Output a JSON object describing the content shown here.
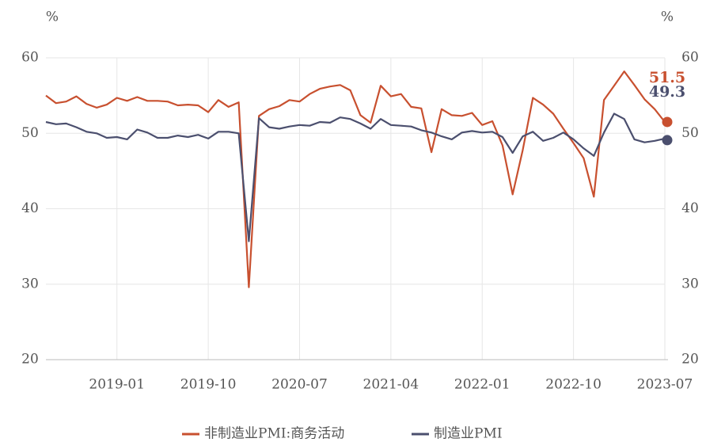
{
  "chart_data": {
    "type": "line",
    "y_unit": "%",
    "y2_unit": "%",
    "x": [
      "2018-06",
      "2018-07",
      "2018-08",
      "2018-09",
      "2018-10",
      "2018-11",
      "2018-12",
      "2019-01",
      "2019-02",
      "2019-03",
      "2019-04",
      "2019-05",
      "2019-06",
      "2019-07",
      "2019-08",
      "2019-09",
      "2019-10",
      "2019-11",
      "2019-12",
      "2020-01",
      "2020-02",
      "2020-03",
      "2020-04",
      "2020-05",
      "2020-06",
      "2020-07",
      "2020-08",
      "2020-09",
      "2020-10",
      "2020-11",
      "2020-12",
      "2021-01",
      "2021-02",
      "2021-03",
      "2021-04",
      "2021-05",
      "2021-06",
      "2021-07",
      "2021-08",
      "2021-09",
      "2021-10",
      "2021-11",
      "2021-12",
      "2022-01",
      "2022-02",
      "2022-03",
      "2022-04",
      "2022-05",
      "2022-06",
      "2022-07",
      "2022-08",
      "2022-09",
      "2022-10",
      "2022-11",
      "2022-12",
      "2023-01",
      "2023-02",
      "2023-03",
      "2023-04",
      "2023-05",
      "2023-06",
      "2023-07"
    ],
    "xlim": [
      "2018-06",
      "2023-07"
    ],
    "xticks": [
      "2019-01",
      "2019-10",
      "2020-07",
      "2021-04",
      "2022-01",
      "2022-10",
      "2023-07"
    ],
    "ylim": [
      20,
      60
    ],
    "yticks": [
      20,
      30,
      40,
      50,
      60
    ],
    "y2lim": [
      20,
      60
    ],
    "y2ticks": [
      20,
      30,
      40,
      50,
      60
    ],
    "grid": true,
    "series": [
      {
        "name": "非制造业PMI:商务活动",
        "color": "#c8502f",
        "values": [
          55.0,
          54.0,
          54.2,
          54.9,
          53.9,
          53.4,
          53.8,
          54.7,
          54.3,
          54.8,
          54.3,
          54.3,
          54.2,
          53.7,
          53.8,
          53.7,
          52.8,
          54.4,
          53.5,
          54.1,
          29.6,
          52.3,
          53.2,
          53.6,
          54.4,
          54.2,
          55.2,
          55.9,
          56.2,
          56.4,
          55.7,
          52.4,
          51.4,
          56.3,
          54.9,
          55.2,
          53.5,
          53.3,
          47.5,
          53.2,
          52.4,
          52.3,
          52.7,
          51.1,
          51.6,
          48.4,
          41.9,
          47.8,
          54.7,
          53.8,
          52.6,
          50.6,
          48.7,
          46.7,
          41.6,
          54.4,
          56.3,
          58.2,
          56.4,
          54.5,
          53.2,
          51.5
        ]
      },
      {
        "name": "制造业PMI",
        "color": "#4b4f6e",
        "values": [
          51.5,
          51.2,
          51.3,
          50.8,
          50.2,
          50.0,
          49.4,
          49.5,
          49.2,
          50.5,
          50.1,
          49.4,
          49.4,
          49.7,
          49.5,
          49.8,
          49.3,
          50.2,
          50.2,
          50.0,
          35.7,
          52.0,
          50.8,
          50.6,
          50.9,
          51.1,
          51.0,
          51.5,
          51.4,
          52.1,
          51.9,
          51.3,
          50.6,
          51.9,
          51.1,
          51.0,
          50.9,
          50.4,
          50.1,
          49.6,
          49.2,
          50.1,
          50.3,
          50.1,
          50.2,
          49.5,
          47.4,
          49.6,
          50.2,
          49.0,
          49.4,
          50.1,
          49.2,
          48.0,
          47.0,
          50.1,
          52.6,
          51.9,
          49.2,
          48.8,
          49.0,
          49.3
        ]
      }
    ]
  }
}
